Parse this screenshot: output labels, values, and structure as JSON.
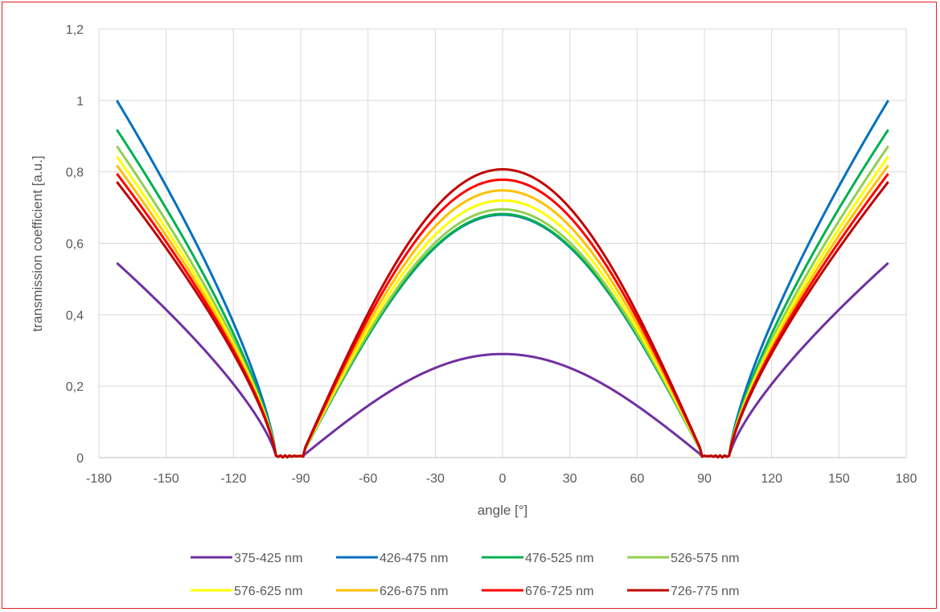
{
  "chart_data": {
    "type": "line",
    "title": "",
    "xlabel": "angle [°]",
    "ylabel": "transmission coefficient [a.u.]",
    "xlim": [
      -180,
      180
    ],
    "ylim": [
      0,
      1.2
    ],
    "xticks": [
      "-180",
      "-150",
      "-120",
      "-90",
      "-60",
      "-30",
      "0",
      "30",
      "60",
      "90",
      "120",
      "150",
      "180"
    ],
    "yticks": [
      "0",
      "0,2",
      "0,4",
      "0,6",
      "0,8",
      "1",
      "1,2"
    ],
    "grid": true,
    "legend_position": "bottom",
    "series": [
      {
        "name": "375-425 nm",
        "color": "#7030a0",
        "edge": 0.545,
        "center": 0.29
      },
      {
        "name": "426-475 nm",
        "color": "#0070c0",
        "edge": 1.0,
        "center": 0.68
      },
      {
        "name": "476-525 nm",
        "color": "#00b050",
        "edge": 0.918,
        "center": 0.682
      },
      {
        "name": "526-575 nm",
        "color": "#92d050",
        "edge": 0.872,
        "center": 0.695
      },
      {
        "name": "576-625 nm",
        "color": "#ffff00",
        "edge": 0.843,
        "center": 0.72
      },
      {
        "name": "626-675 nm",
        "color": "#ffc000",
        "edge": 0.818,
        "center": 0.748
      },
      {
        "name": "676-725 nm",
        "color": "#ff0000",
        "edge": 0.795,
        "center": 0.778
      },
      {
        "name": "726-775 nm",
        "color": "#c00000",
        "edge": 0.772,
        "center": 0.807
      }
    ]
  }
}
